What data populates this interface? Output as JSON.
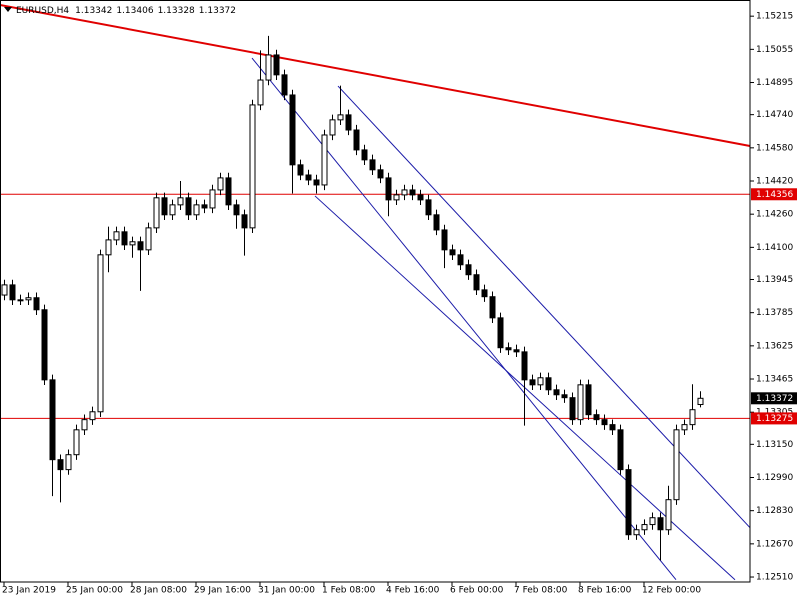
{
  "chart_data": {
    "type": "candlestick",
    "title": "EURUSD,H4",
    "categories": [
      "23 Jan 2019",
      null,
      null,
      null,
      null,
      null,
      null,
      null,
      "25 Jan 00:00",
      null,
      null,
      null,
      null,
      null,
      null,
      null,
      "28 Jan 08:00",
      null,
      null,
      null,
      null,
      null,
      null,
      null,
      "29 Jan 16:00",
      null,
      null,
      null,
      null,
      null,
      null,
      null,
      "31 Jan 00:00",
      null,
      null,
      null,
      null,
      null,
      null,
      null,
      "1 Feb 08:00",
      null,
      null,
      null,
      null,
      null,
      null,
      null,
      "4 Feb 16:00",
      null,
      null,
      null,
      null,
      null,
      null,
      null,
      "6 Feb 00:00",
      null,
      null,
      null,
      null,
      null,
      null,
      null,
      "7 Feb 08:00",
      null,
      null,
      null,
      null,
      null,
      null,
      null,
      "8 Feb 16:00",
      null,
      null,
      null,
      null,
      null,
      null,
      null,
      "12 Feb 00:00",
      null,
      null,
      null,
      null,
      null,
      null,
      null
    ],
    "open": [
      1.1387,
      1.13919,
      1.13847,
      1.13847,
      1.13857,
      1.13799,
      1.13461,
      1.13076,
      1.13028,
      1.131,
      1.1322,
      1.13269,
      1.13307,
      1.14064,
      1.14136,
      1.14175,
      1.14112,
      1.14127,
      1.14088,
      1.14194,
      1.14339,
      1.14257,
      1.14305,
      1.14339,
      1.14257,
      1.14305,
      1.1429,
      1.14377,
      1.14435,
      1.14305,
      1.14257,
      1.14194,
      1.14787,
      1.14907,
      1.15028,
      1.14932,
      1.14835,
      1.14498,
      1.14449,
      1.14425,
      1.14401,
      1.14642,
      1.14715,
      1.14739,
      1.14666,
      1.1457,
      1.14522,
      1.14474,
      1.14435,
      1.14329,
      1.14353,
      1.14377,
      1.14353,
      1.14329,
      1.14257,
      1.14184,
      1.14088,
      1.14064,
      1.14016,
      1.13968,
      1.13895,
      1.13862,
      1.1376,
      1.13616,
      1.13606,
      1.13596,
      1.13461,
      1.13437,
      1.13471,
      1.13413,
      1.13389,
      1.13375,
      1.13269,
      1.13437,
      1.13293,
      1.13269,
      1.13245,
      1.1322,
      1.13028,
      1.12714,
      1.12738,
      1.12763,
      1.12796,
      1.12738,
      1.12883,
      1.1322,
      1.13245,
      1.13342
    ],
    "high": [
      1.13944,
      1.13944,
      1.13872,
      1.13882,
      1.13882,
      1.13824,
      1.13486,
      1.13101,
      1.13125,
      1.13245,
      1.13294,
      1.13332,
      1.14089,
      1.142,
      1.142,
      1.142,
      1.14152,
      1.14152,
      1.14219,
      1.14364,
      1.14364,
      1.1433,
      1.1442,
      1.14364,
      1.1433,
      1.1433,
      1.14402,
      1.1446,
      1.1446,
      1.1433,
      1.14282,
      1.14812,
      1.1505,
      1.1512,
      1.15053,
      1.14957,
      1.1486,
      1.14523,
      1.14474,
      1.1445,
      1.14667,
      1.1474,
      1.1488,
      1.14764,
      1.14691,
      1.14595,
      1.14547,
      1.14499,
      1.1446,
      1.14378,
      1.14402,
      1.14402,
      1.14378,
      1.14354,
      1.14282,
      1.14209,
      1.14113,
      1.14089,
      1.14041,
      1.13993,
      1.1392,
      1.13887,
      1.13785,
      1.13641,
      1.13631,
      1.13621,
      1.13486,
      1.13496,
      1.13496,
      1.13438,
      1.13414,
      1.134,
      1.13462,
      1.13462,
      1.13318,
      1.13294,
      1.1327,
      1.13245,
      1.13053,
      1.12763,
      1.12788,
      1.12821,
      1.12821,
      1.1295,
      1.13245,
      1.1327,
      1.1344,
      1.13406
    ],
    "low": [
      1.13845,
      1.13822,
      1.13822,
      1.13822,
      1.13774,
      1.13436,
      1.129,
      1.1287,
      1.13003,
      1.13075,
      1.13195,
      1.13244,
      1.13282,
      1.1398,
      1.14111,
      1.14087,
      1.1405,
      1.1389,
      1.14063,
      1.14169,
      1.14232,
      1.14232,
      1.1428,
      1.14232,
      1.14232,
      1.14265,
      1.14265,
      1.14352,
      1.1428,
      1.1419,
      1.1406,
      1.14169,
      1.14762,
      1.14882,
      1.14907,
      1.1481,
      1.1436,
      1.14424,
      1.144,
      1.1436,
      1.14376,
      1.14617,
      1.1469,
      1.14641,
      1.14545,
      1.14497,
      1.14449,
      1.1441,
      1.1425,
      1.14304,
      1.14328,
      1.14328,
      1.14304,
      1.14232,
      1.14159,
      1.14,
      1.14039,
      1.13991,
      1.13943,
      1.1387,
      1.13837,
      1.13735,
      1.13591,
      1.13581,
      1.13571,
      1.1324,
      1.13412,
      1.13412,
      1.13388,
      1.13364,
      1.1335,
      1.13244,
      1.13244,
      1.13268,
      1.13244,
      1.1322,
      1.13195,
      1.13003,
      1.12689,
      1.12689,
      1.12713,
      1.12738,
      1.1259,
      1.12713,
      1.12858,
      1.13195,
      1.1322,
      1.13328
    ],
    "close": [
      1.13919,
      1.13847,
      1.13847,
      1.13857,
      1.13799,
      1.13461,
      1.13076,
      1.13028,
      1.131,
      1.1322,
      1.13269,
      1.13307,
      1.14064,
      1.14136,
      1.14175,
      1.14112,
      1.14127,
      1.14088,
      1.14194,
      1.14339,
      1.14257,
      1.14305,
      1.14339,
      1.14257,
      1.14305,
      1.1429,
      1.14377,
      1.14435,
      1.14305,
      1.14257,
      1.14194,
      1.14787,
      1.14907,
      1.15028,
      1.14932,
      1.14835,
      1.14498,
      1.14449,
      1.14425,
      1.14401,
      1.14642,
      1.14715,
      1.14739,
      1.14666,
      1.1457,
      1.14522,
      1.14474,
      1.14435,
      1.14329,
      1.14353,
      1.14377,
      1.14353,
      1.14329,
      1.14257,
      1.14184,
      1.14088,
      1.14064,
      1.14016,
      1.13968,
      1.13895,
      1.13862,
      1.1376,
      1.13616,
      1.13606,
      1.13596,
      1.13461,
      1.13437,
      1.13471,
      1.13413,
      1.13389,
      1.13375,
      1.13269,
      1.13437,
      1.13293,
      1.13269,
      1.13245,
      1.1322,
      1.13028,
      1.12714,
      1.12738,
      1.12763,
      1.12796,
      1.12738,
      1.12883,
      1.1322,
      1.13245,
      1.13317,
      1.13372
    ],
    "up_color": "#ffffff",
    "down_color": "#000000",
    "xlim": [
      -0.5,
      93.25
    ],
    "ylim": [
      1.12486,
      1.15293
    ],
    "yticks": [
      {
        "value": 1.15215,
        "label": "1.15215"
      },
      {
        "value": 1.15055,
        "label": "1.15055"
      },
      {
        "value": 1.14895,
        "label": "1.14895"
      },
      {
        "value": 1.1474,
        "label": "1.14740"
      },
      {
        "value": 1.1458,
        "label": "1.14580"
      },
      {
        "value": 1.1442,
        "label": "1.14420"
      },
      {
        "value": 1.1426,
        "label": "1.14260"
      },
      {
        "value": 1.141,
        "label": "1.14100"
      },
      {
        "value": 1.13945,
        "label": "1.13945"
      },
      {
        "value": 1.13785,
        "label": "1.13785"
      },
      {
        "value": 1.13625,
        "label": "1.13625"
      },
      {
        "value": 1.13465,
        "label": "1.13465"
      },
      {
        "value": 1.13305,
        "label": "1.13305"
      },
      {
        "value": 1.1315,
        "label": "1.13150"
      },
      {
        "value": 1.1299,
        "label": "1.12990"
      },
      {
        "value": 1.1283,
        "label": "1.12830"
      },
      {
        "value": 1.1267,
        "label": "1.12670"
      },
      {
        "value": 1.1251,
        "label": "1.12510"
      }
    ],
    "hlines": [
      {
        "value": 1.14356,
        "color": "#e00000"
      },
      {
        "value": 1.13275,
        "color": "#e00000"
      }
    ],
    "lines": [
      {
        "x": [
          -0.5,
          93.25
        ],
        "y": [
          1.15269,
          1.14589
        ],
        "color": "#e00000"
      },
      {
        "x": [
          41.75,
          93.25
        ],
        "y": [
          1.14878,
          1.12748
        ],
        "color": "#1a1aa8"
      },
      {
        "x": [
          31,
          84
        ],
        "y": [
          1.15013,
          1.12497
        ],
        "color": "#1a1aa8"
      },
      {
        "x": [
          38.875,
          91.375
        ],
        "y": [
          1.14348,
          1.12497
        ],
        "color": "#1a1aa8"
      }
    ]
  }
}
